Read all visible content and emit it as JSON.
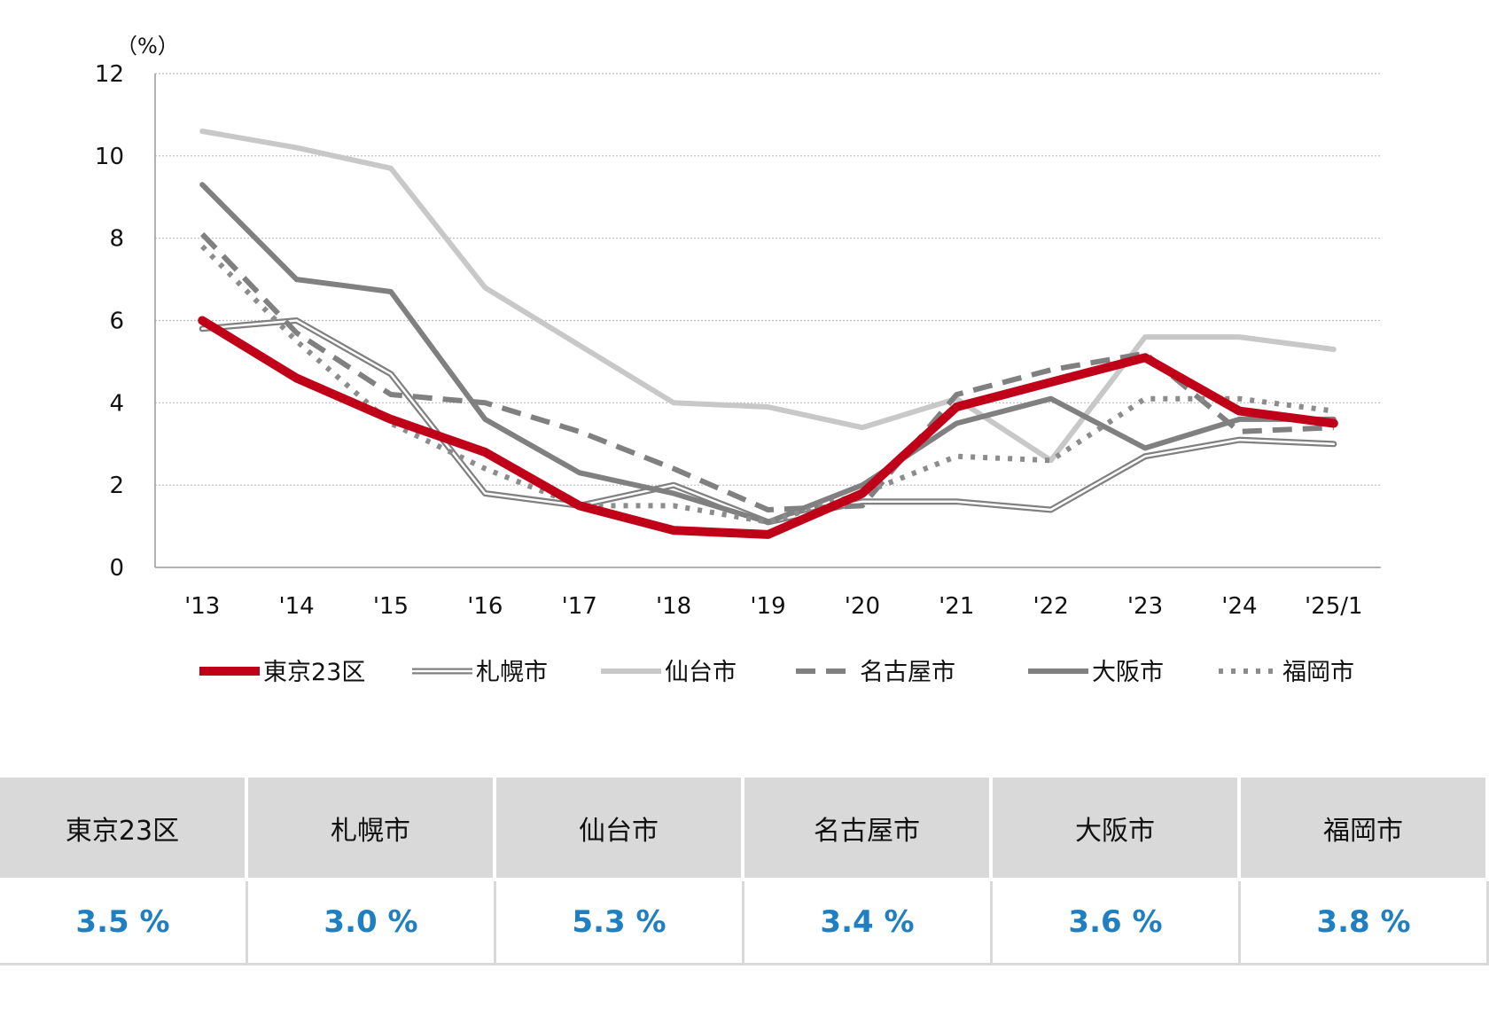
{
  "chart_data": {
    "type": "line",
    "unit_label": "（%）",
    "categories": [
      "'13",
      "'14",
      "'15",
      "'16",
      "'17",
      "'18",
      "'19",
      "'20",
      "'21",
      "'22",
      "'23",
      "'24",
      "'25/1"
    ],
    "ylim": [
      0,
      12
    ],
    "yticks": [
      0,
      2,
      4,
      6,
      8,
      10,
      12
    ],
    "grid": true,
    "legend_position": "bottom",
    "series": [
      {
        "name": "札幌市",
        "style": "double",
        "color": "#808080",
        "values": [
          5.8,
          6.0,
          4.7,
          1.8,
          1.5,
          2.0,
          1.1,
          1.6,
          1.6,
          1.4,
          2.7,
          3.1,
          3.0
        ]
      },
      {
        "name": "仙台市",
        "style": "solid",
        "color": "#c8c8c8",
        "values": [
          10.6,
          10.2,
          9.7,
          6.8,
          5.4,
          4.0,
          3.9,
          3.4,
          4.1,
          2.6,
          5.6,
          5.6,
          5.3
        ]
      },
      {
        "name": "大阪市",
        "style": "solid",
        "color": "#808080",
        "values": [
          9.3,
          7.0,
          6.7,
          3.6,
          2.3,
          1.8,
          1.1,
          2.0,
          3.5,
          4.1,
          2.9,
          3.6,
          3.6
        ]
      },
      {
        "name": "名古屋市",
        "style": "dashed",
        "color": "#808080",
        "values": [
          8.1,
          5.7,
          4.2,
          4.0,
          3.3,
          2.4,
          1.4,
          1.5,
          4.2,
          4.8,
          5.2,
          3.3,
          3.4
        ]
      },
      {
        "name": "福岡市",
        "style": "dotted",
        "color": "#8c8c8c",
        "values": [
          7.8,
          5.5,
          3.5,
          2.4,
          1.5,
          1.5,
          1.1,
          1.8,
          2.7,
          2.6,
          4.1,
          4.1,
          3.8
        ]
      },
      {
        "name": "東京23区",
        "style": "bold",
        "color": "#c00018",
        "values": [
          6.0,
          4.6,
          3.6,
          2.8,
          1.5,
          0.9,
          0.8,
          1.8,
          3.9,
          4.5,
          5.1,
          3.8,
          3.5
        ]
      }
    ],
    "legend_order": [
      "東京23区",
      "札幌市",
      "仙台市",
      "名古屋市",
      "大阪市",
      "福岡市"
    ]
  },
  "summary_table": {
    "headers": [
      "東京23区",
      "札幌市",
      "仙台市",
      "名古屋市",
      "大阪市",
      "福岡市"
    ],
    "values": [
      "3.5 %",
      "3.0 %",
      "5.3 %",
      "3.4 %",
      "3.6 %",
      "3.8 %"
    ]
  }
}
